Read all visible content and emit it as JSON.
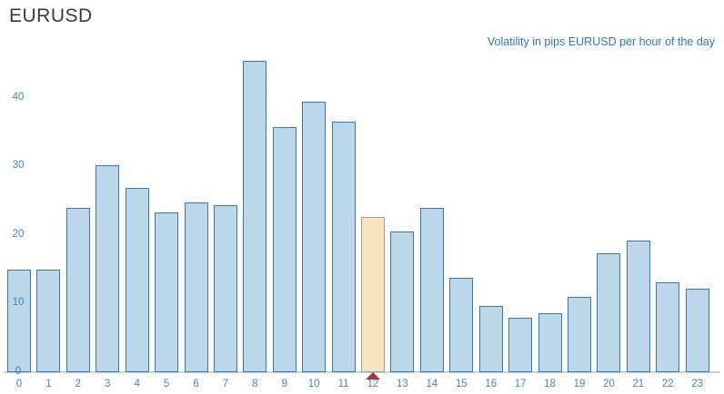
{
  "title": "EURUSD",
  "annotation": "Volatility in pips EURUSD per hour of the day",
  "chart_data": {
    "type": "bar",
    "title": "Volatility in pips EURUSD per hour of the day",
    "xlabel": "",
    "ylabel": "",
    "categories": [
      "0",
      "1",
      "2",
      "3",
      "4",
      "5",
      "6",
      "7",
      "8",
      "9",
      "10",
      "11",
      "12",
      "13",
      "14",
      "15",
      "16",
      "17",
      "18",
      "19",
      "20",
      "21",
      "22",
      "23"
    ],
    "values": [
      15.0,
      15.0,
      24.0,
      30.2,
      26.9,
      23.3,
      24.8,
      24.4,
      45.4,
      35.7,
      39.4,
      36.5,
      22.6,
      20.5,
      23.9,
      13.7,
      9.6,
      8.0,
      8.6,
      11.0,
      17.3,
      19.2,
      13.1,
      12.2
    ],
    "yticks": [
      0,
      10,
      20,
      30,
      40
    ],
    "ylim": [
      0,
      46
    ],
    "grid": false,
    "legend": false,
    "highlight": {
      "index": 12,
      "marker": "triangle-up"
    }
  },
  "colors": {
    "bar_fill": "#bcd7e9",
    "bar_stroke": "#3a77aa",
    "highlight_fill": "#f8e3bf",
    "highlight_stroke": "#92a2ad",
    "marker": "#a23343",
    "axis_text": "#4484ba",
    "annotation_text": "#2f76b4",
    "title_text": "#3b3b3b",
    "baseline": "#c4d4de"
  }
}
